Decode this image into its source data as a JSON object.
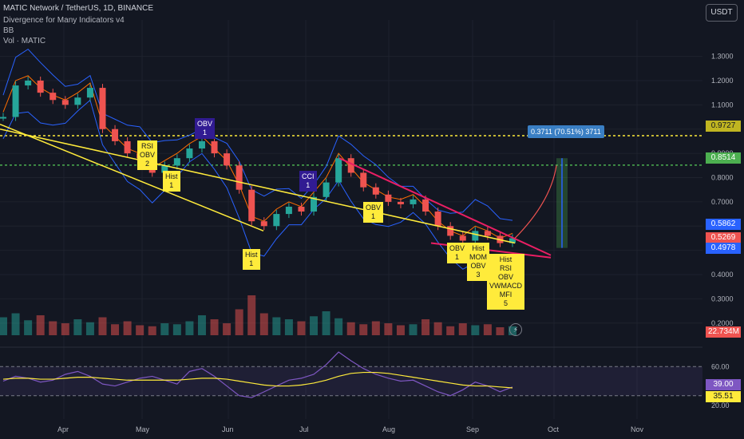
{
  "header": {
    "symbol_line": "MATIC Network / TetherUS, 1D, BINANCE",
    "indicator_line": "Divergence for Many Indicators v4",
    "indicator2": "BB",
    "indicator3": "Vol · MATIC"
  },
  "currency_button": "USDT",
  "price_tags": {
    "level1": "0.9727",
    "level2": "0.8514",
    "level3": "0.5862",
    "level4": "0.5269",
    "level5": "0.4978",
    "volume": "22.734M",
    "rsi1": "39.00",
    "rsi2": "35.51"
  },
  "measure_label": "0.3711 (70.51%) 3711",
  "colors": {
    "background": "#131722",
    "up": "#26a69a",
    "down": "#ef5350",
    "bb_band": "#2962ff",
    "bb_basis": "#ff6d00",
    "trend_yellow": "#ffeb3b",
    "wedge": "#e91e63",
    "rsi_line": "#7e57c2",
    "rsi_ma": "#ffeb3b"
  },
  "notes": [
    {
      "text": "RSI\nOBV\n2",
      "style": "yellow"
    },
    {
      "text": "Hist\n1",
      "style": "yellow"
    },
    {
      "text": "OBV\n1",
      "style": "purple"
    },
    {
      "text": "Hist\n1",
      "style": "yellow"
    },
    {
      "text": "CCI\n1",
      "style": "purple"
    },
    {
      "text": "OBV\n1",
      "style": "yellow"
    },
    {
      "text": "OBV\n1",
      "style": "yellow"
    },
    {
      "text": "Hist\nMOM\nOBV\n3",
      "style": "yellow"
    },
    {
      "text": "Hist\nRSI\nOBV\nVWMACD\nMFI\n5",
      "style": "yellow"
    }
  ],
  "chart_data": [
    {
      "type": "line",
      "title": "",
      "x_ticks": [
        "Apr",
        "May",
        "Jun",
        "Jul",
        "Aug",
        "Sep",
        "Oct",
        "Nov"
      ],
      "y_ticks": [
        "1.3000",
        "1.2000",
        "1.1000",
        "1.0000",
        "0.9000",
        "0.8000",
        "0.7000",
        "0.6000",
        "0.5000",
        "0.4000",
        "0.3000",
        "0.2000"
      ],
      "ylim": [
        0.15,
        1.45
      ],
      "series": [
        {
          "values": [
            1.05,
            1.18,
            1.2,
            1.15,
            1.12,
            1.1,
            1.13,
            1.17,
            1.0,
            0.95,
            0.9,
            0.88,
            0.82,
            0.85,
            0.88,
            0.92,
            0.95,
            0.9,
            0.85,
            0.75,
            0.62,
            0.6,
            0.65,
            0.68,
            0.66,
            0.72,
            0.78,
            0.88,
            0.82,
            0.76,
            0.73,
            0.7,
            0.69,
            0.71,
            0.66,
            0.6,
            0.56,
            0.54,
            0.58,
            0.56,
            0.53,
            0.55
          ]
        }
      ],
      "horizontal_levels": [
        0.9727,
        0.8514
      ],
      "annotations": [
        "0.3711 (70.51%) 3711"
      ]
    },
    {
      "type": "bar",
      "title": "",
      "series": [
        {
          "values": [
            18,
            22,
            15,
            20,
            14,
            12,
            16,
            13,
            18,
            11,
            14,
            10,
            9,
            12,
            11,
            14,
            20,
            16,
            12,
            26,
            40,
            22,
            18,
            16,
            14,
            19,
            24,
            17,
            13,
            11,
            14,
            12,
            10,
            11,
            16,
            13,
            9,
            12,
            10,
            11,
            8,
            9
          ]
        }
      ],
      "last_value_label": "22.734M"
    },
    {
      "type": "line",
      "title": "",
      "y_ticks": [
        "60.00",
        "20.00"
      ],
      "ylim": [
        10,
        80
      ],
      "series": [
        {
          "values": [
            45,
            50,
            48,
            44,
            46,
            52,
            55,
            50,
            42,
            40,
            44,
            48,
            50,
            46,
            42,
            55,
            58,
            50,
            40,
            30,
            28,
            34,
            40,
            46,
            48,
            52,
            62,
            75,
            66,
            58,
            52,
            48,
            45,
            46,
            40,
            34,
            30,
            36,
            44,
            40,
            34,
            39
          ]
        },
        {
          "values": [
            47,
            48,
            48,
            47,
            47,
            48,
            49,
            49,
            48,
            47,
            46,
            46,
            46,
            46,
            46,
            47,
            48,
            48,
            47,
            45,
            43,
            41,
            40,
            40,
            41,
            43,
            46,
            50,
            53,
            54,
            54,
            53,
            51,
            49,
            47,
            45,
            43,
            41,
            40,
            40,
            39,
            38
          ]
        }
      ],
      "levels": [
        39.0,
        35.51
      ]
    }
  ]
}
